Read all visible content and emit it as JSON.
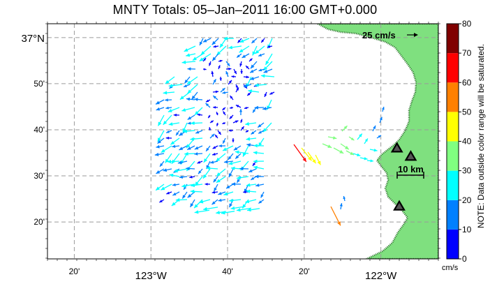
{
  "title": "MNTY Totals: 05–Jan–2011 16:00 GMT+0.000",
  "axes": {
    "x_ticks": [
      {
        "lon": -123.3333,
        "label": "20'",
        "major": false
      },
      {
        "lon": -123.0,
        "label": "123°W",
        "major": true
      },
      {
        "lon": -122.6667,
        "label": "40'",
        "major": false
      },
      {
        "lon": -122.3333,
        "label": "20'",
        "major": false
      },
      {
        "lon": -122.0,
        "label": "122°W",
        "major": true
      }
    ],
    "y_ticks": [
      {
        "lat": 37.0,
        "label": "37°N",
        "major": true
      },
      {
        "lat": 36.8333,
        "label": "50'",
        "major": false
      },
      {
        "lat": 36.6667,
        "label": "40'",
        "major": false
      },
      {
        "lat": 36.5,
        "label": "30'",
        "major": false
      },
      {
        "lat": 36.3333,
        "label": "20'",
        "major": false
      }
    ],
    "lon_range": [
      -123.45,
      -121.75
    ],
    "lat_range": [
      36.2,
      37.05
    ]
  },
  "scale_arrow": {
    "label": "25 cm/s"
  },
  "scale_bar": {
    "label": "10 km"
  },
  "colorbar": {
    "ticks": [
      "0",
      "10",
      "20",
      "30",
      "40",
      "50",
      "60",
      "70",
      "80"
    ],
    "unit": "cm/s",
    "note": "NOTE: Data outside color range will be saturated.",
    "colors": [
      "#0000ff",
      "#0080ff",
      "#00ffff",
      "#80ff80",
      "#ffff00",
      "#ff8000",
      "#ff0000",
      "#800000"
    ]
  },
  "colors": {
    "land": "#7fe07f",
    "coast_dots": "#2f6f2f",
    "grid": "#9a9a9a"
  },
  "stations": [
    {
      "lon": -121.93,
      "lat": 36.6
    },
    {
      "lon": -121.87,
      "lat": 36.57
    },
    {
      "lon": -121.92,
      "lat": 36.39
    }
  ]
}
